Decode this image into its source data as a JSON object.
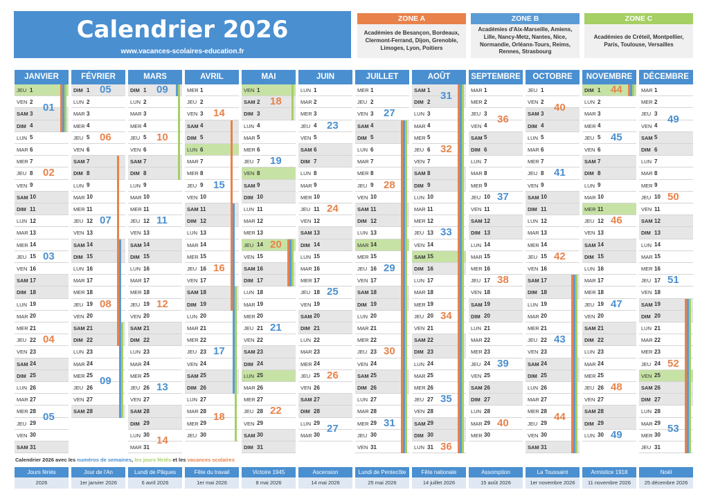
{
  "header": {
    "title": "Calendrier 2026",
    "subtitle": "www.vacances-scolaires-education.fr"
  },
  "zones": [
    {
      "label": "ZONE A",
      "color": "#e8824a",
      "text": "Académies de Besançon, Bordeaux, Clermont-Ferrand, Dijon, Grenoble, Limoges, Lyon, Poitiers"
    },
    {
      "label": "ZONE B",
      "color": "#5b9bd5",
      "text": "Académies d'Aix-Marseille, Amiens, Lille, Nancy-Metz, Nantes, Nice, Normandie, Orléans-Tours, Reims, Rennes, Strasbourg"
    },
    {
      "label": "ZONE C",
      "color": "#a6cf64",
      "text": "Académies de Créteil, Montpellier, Paris, Toulouse, Versailles"
    }
  ],
  "colors": {
    "accent": "#4a8fd0",
    "weekend": "#e6e6e6",
    "holiday": "#c7e2a5",
    "zone_a": "#e8824a",
    "zone_b": "#5b9bd5",
    "zone_c": "#a6cf64"
  },
  "year": 2026,
  "day_abbrev": [
    "DIM",
    "LUN",
    "MAR",
    "MER",
    "JEU",
    "VEN",
    "SAM"
  ],
  "months": [
    {
      "name": "JANVIER",
      "days": 31
    },
    {
      "name": "FÉVRIER",
      "days": 28
    },
    {
      "name": "MARS",
      "days": 31
    },
    {
      "name": "AVRIL",
      "days": 30
    },
    {
      "name": "MAI",
      "days": 31
    },
    {
      "name": "JUIN",
      "days": 30
    },
    {
      "name": "JUILLET",
      "days": 31
    },
    {
      "name": "AOÛT",
      "days": 31
    },
    {
      "name": "SEPTEMBRE",
      "days": 30
    },
    {
      "name": "OCTOBRE",
      "days": 31
    },
    {
      "name": "NOVEMBRE",
      "days": 30
    },
    {
      "name": "DÉCEMBRE",
      "days": 31
    }
  ],
  "holiday_dates": [
    [
      1,
      1
    ],
    [
      4,
      6
    ],
    [
      5,
      1
    ],
    [
      5,
      8
    ],
    [
      5,
      14
    ],
    [
      5,
      25
    ],
    [
      7,
      14
    ],
    [
      8,
      15
    ],
    [
      11,
      1
    ],
    [
      11,
      11
    ],
    [
      12,
      25
    ]
  ],
  "vacations": {
    "a": [
      [
        [
          1,
          1
        ],
        [
          1,
          4
        ]
      ],
      [
        [
          2,
          7
        ],
        [
          2,
          22
        ]
      ],
      [
        [
          4,
          4
        ],
        [
          4,
          19
        ]
      ],
      [
        [
          5,
          14
        ],
        [
          5,
          17
        ]
      ],
      [
        [
          7,
          4
        ],
        [
          8,
          31
        ]
      ],
      [
        [
          10,
          17
        ],
        [
          10,
          31
        ]
      ],
      [
        [
          11,
          1
        ],
        [
          11,
          1
        ]
      ],
      [
        [
          12,
          19
        ],
        [
          12,
          31
        ]
      ]
    ],
    "b": [
      [
        [
          1,
          1
        ],
        [
          1,
          4
        ]
      ],
      [
        [
          2,
          14
        ],
        [
          3,
          1
        ]
      ],
      [
        [
          4,
          11
        ],
        [
          4,
          26
        ]
      ],
      [
        [
          5,
          14
        ],
        [
          5,
          17
        ]
      ],
      [
        [
          7,
          4
        ],
        [
          8,
          31
        ]
      ],
      [
        [
          10,
          17
        ],
        [
          10,
          31
        ]
      ],
      [
        [
          11,
          1
        ],
        [
          11,
          1
        ]
      ],
      [
        [
          12,
          19
        ],
        [
          12,
          31
        ]
      ]
    ],
    "c": [
      [
        [
          1,
          1
        ],
        [
          1,
          4
        ]
      ],
      [
        [
          2,
          21
        ],
        [
          3,
          8
        ]
      ],
      [
        [
          4,
          18
        ],
        [
          5,
          3
        ]
      ],
      [
        [
          5,
          14
        ],
        [
          5,
          17
        ]
      ],
      [
        [
          7,
          4
        ],
        [
          8,
          31
        ]
      ],
      [
        [
          10,
          17
        ],
        [
          10,
          31
        ]
      ],
      [
        [
          11,
          1
        ],
        [
          11,
          1
        ]
      ],
      [
        [
          12,
          19
        ],
        [
          12,
          31
        ]
      ]
    ]
  },
  "legend": {
    "prefix": "Calendrier 2026 avec les ",
    "weeks": "numéros de semaines",
    "sep": ", ",
    "holidays": "les jours fériés",
    "and": " et les ",
    "vacations": "vacances scolaires"
  },
  "public_holidays": [
    {
      "name": "Jours fériés",
      "date": "2026"
    },
    {
      "name": "Jour de l'An",
      "date": "1er janvier 2026"
    },
    {
      "name": "Lundi de Pâques",
      "date": "6 avril 2026"
    },
    {
      "name": "Fête du travail",
      "date": "1er mai 2026"
    },
    {
      "name": "Victoire 1945",
      "date": "8 mai 2026"
    },
    {
      "name": "Ascension",
      "date": "14 mai 2026"
    },
    {
      "name": "Lundi de Pentecôte",
      "date": "25 mai 2026"
    },
    {
      "name": "Fête nationale",
      "date": "14 juillet 2026"
    },
    {
      "name": "Assomption",
      "date": "15 août 2026"
    },
    {
      "name": "La Toussaint",
      "date": "1er novembre 2026"
    },
    {
      "name": "Armistice 1918",
      "date": "11 novembre 2026"
    },
    {
      "name": "Noël",
      "date": "25 décembre 2026"
    }
  ]
}
